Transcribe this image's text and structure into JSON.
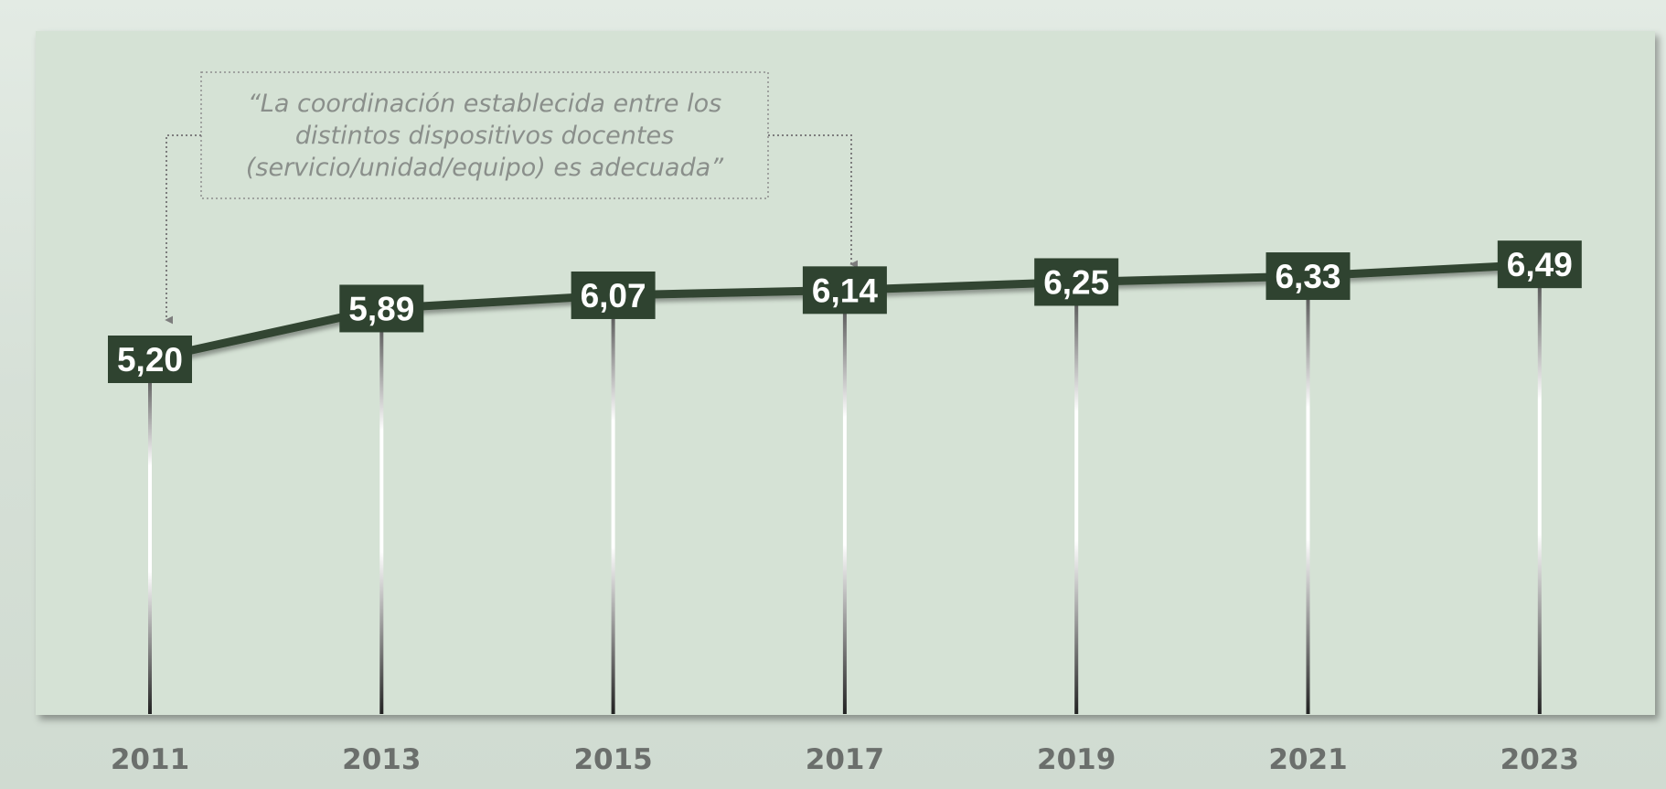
{
  "chart_data": {
    "type": "line",
    "title": "",
    "annotation": {
      "lines": [
        "“La coordinación establecida entre los",
        "distintos dispositivos docentes",
        "(servicio/unidad/equipo) es adecuada”"
      ],
      "arrow_targets": [
        "2011",
        "2017"
      ]
    },
    "categories": [
      "2011",
      "2013",
      "2015",
      "2017",
      "2019",
      "2021",
      "2023"
    ],
    "series": [
      {
        "values": [
          5.2,
          5.89,
          6.07,
          6.14,
          6.25,
          6.33,
          6.49
        ],
        "labels": [
          "5,20",
          "5,89",
          "6,07",
          "6,14",
          "6,25",
          "6,33",
          "6,49"
        ]
      }
    ],
    "xlabel": "",
    "ylabel": "",
    "grid": false,
    "colors": {
      "line": "#334532",
      "label_box": "#2f4330",
      "label_text": "#ffffff",
      "plot_background": "#d5e2d5",
      "year_text": "#6b6f6c",
      "callout_text": "#8a8f8b"
    }
  }
}
